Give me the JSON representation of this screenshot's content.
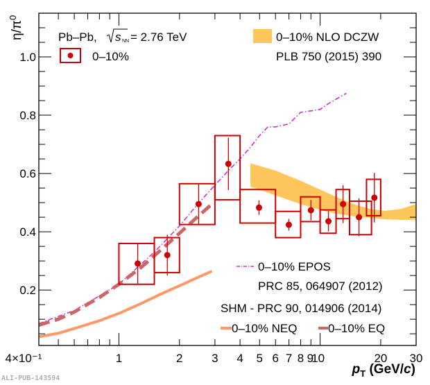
{
  "chart_data": {
    "type": "scatter",
    "title": "",
    "xlabel": "p_T (GeV/c)",
    "xlabel_parts": {
      "main": "p",
      "sub": "T",
      "unit_open": " (GeV/",
      "unit_italic": "c",
      "unit_close": ")"
    },
    "ylabel": "η/π⁰",
    "ylabel_parts": {
      "main": "η/π",
      "sup": "0"
    },
    "xscale": "log",
    "xlim": [
      0.4,
      30
    ],
    "ylim": [
      0.01,
      1.15
    ],
    "xticks": [
      {
        "value": 0.4,
        "label": "4×10⁻¹"
      },
      {
        "value": 1,
        "label": "1"
      },
      {
        "value": 2,
        "label": "2"
      },
      {
        "value": 3,
        "label": "3"
      },
      {
        "value": 4,
        "label": "4"
      },
      {
        "value": 5,
        "label": "5"
      },
      {
        "value": 6,
        "label": "6"
      },
      {
        "value": 7,
        "label": "7"
      },
      {
        "value": 8,
        "label": "8"
      },
      {
        "value": 9,
        "label": "9"
      },
      {
        "value": 10,
        "label": "10"
      },
      {
        "value": 20,
        "label": "20"
      },
      {
        "value": 30,
        "label": "30"
      }
    ],
    "yticks": [
      {
        "value": 0.2,
        "label": "0.2"
      },
      {
        "value": 0.4,
        "label": "0.4"
      },
      {
        "value": 0.6,
        "label": "0.6"
      },
      {
        "value": 0.8,
        "label": "0.8"
      },
      {
        "value": 1.0,
        "label": "1.0"
      }
    ],
    "grid": false,
    "series": [
      {
        "name": "0–10%",
        "kind": "data",
        "color": "#cc0000",
        "points": [
          {
            "x": 1.24,
            "y": 0.291,
            "stat": 0.07,
            "x_lo": 1.0,
            "x_hi": 1.5,
            "sys_lo": 0.22,
            "sys_hi": 0.36
          },
          {
            "x": 1.74,
            "y": 0.32,
            "stat": 0.07,
            "x_lo": 1.5,
            "x_hi": 2.0,
            "sys_lo": 0.26,
            "sys_hi": 0.38
          },
          {
            "x": 2.49,
            "y": 0.495,
            "stat": 0.07,
            "x_lo": 2.0,
            "x_hi": 3.0,
            "sys_lo": 0.425,
            "sys_hi": 0.565
          },
          {
            "x": 3.5,
            "y": 0.633,
            "stat": 0.09,
            "x_lo": 3.0,
            "x_hi": 4.0,
            "sys_lo": 0.51,
            "sys_hi": 0.73
          },
          {
            "x": 4.97,
            "y": 0.483,
            "stat": 0.025,
            "x_lo": 4.0,
            "x_hi": 6.0,
            "sys_lo": 0.43,
            "sys_hi": 0.545
          },
          {
            "x": 6.99,
            "y": 0.424,
            "stat": 0.02,
            "x_lo": 6.0,
            "x_hi": 8.0,
            "sys_lo": 0.38,
            "sys_hi": 0.47
          },
          {
            "x": 9.0,
            "y": 0.474,
            "stat": 0.035,
            "x_lo": 8.0,
            "x_hi": 10.0,
            "sys_lo": 0.435,
            "sys_hi": 0.52
          },
          {
            "x": 11.0,
            "y": 0.436,
            "stat": 0.035,
            "x_lo": 10.0,
            "x_hi": 12.0,
            "sys_lo": 0.395,
            "sys_hi": 0.475
          },
          {
            "x": 13.0,
            "y": 0.495,
            "stat": 0.065,
            "x_lo": 12.0,
            "x_hi": 14.0,
            "sys_lo": 0.445,
            "sys_hi": 0.545
          },
          {
            "x": 15.6,
            "y": 0.45,
            "stat": 0.065,
            "x_lo": 14.0,
            "x_hi": 18.0,
            "sys_lo": 0.39,
            "sys_hi": 0.505
          },
          {
            "x": 18.6,
            "y": 0.517,
            "stat": 0.085,
            "x_lo": 17.0,
            "x_hi": 20.0,
            "sys_lo": 0.455,
            "sys_hi": 0.58
          }
        ]
      },
      {
        "name": "0–10% NLO DCZW",
        "kind": "band",
        "color": "#ffc65c",
        "x": [
          4.5,
          6,
          8,
          10,
          12,
          15,
          18,
          21,
          25,
          30
        ],
        "y_lo": [
          0.555,
          0.525,
          0.495,
          0.475,
          0.462,
          0.452,
          0.447,
          0.443,
          0.441,
          0.44
        ],
        "y_hi": [
          0.635,
          0.61,
          0.575,
          0.545,
          0.52,
          0.493,
          0.477,
          0.472,
          0.478,
          0.495
        ]
      },
      {
        "name": "0–10% EPOS",
        "kind": "line",
        "style": "dash-dot",
        "color": "#cc33cc",
        "x": [
          0.4,
          0.6,
          0.8,
          1.0,
          1.5,
          2.0,
          2.5,
          3.0,
          3.5,
          4.0,
          4.5,
          5.0,
          5.5,
          6.0,
          7.0,
          8.0,
          9.0,
          10.0,
          11.0,
          12.0,
          13.5
        ],
        "y": [
          0.085,
          0.13,
          0.18,
          0.22,
          0.33,
          0.42,
          0.5,
          0.56,
          0.61,
          0.65,
          0.69,
          0.73,
          0.76,
          0.76,
          0.77,
          0.81,
          0.815,
          0.82,
          0.84,
          0.855,
          0.875
        ]
      },
      {
        "name": "0–10% NEQ",
        "kind": "line",
        "style": "solid",
        "color": "#ff9966",
        "x": [
          0.4,
          0.5,
          0.6,
          0.8,
          1.0,
          1.3,
          1.6,
          2.0,
          2.4,
          2.9
        ],
        "y": [
          0.04,
          0.052,
          0.068,
          0.095,
          0.12,
          0.155,
          0.185,
          0.215,
          0.24,
          0.265
        ]
      },
      {
        "name": "0–10% EQ",
        "kind": "line",
        "style": "dashed",
        "color": "#cc6666",
        "x": [
          0.4,
          0.5,
          0.6,
          0.8,
          1.0,
          1.3,
          1.6,
          2.0,
          2.4,
          2.9
        ],
        "y": [
          0.08,
          0.1,
          0.125,
          0.175,
          0.22,
          0.28,
          0.335,
          0.395,
          0.445,
          0.495
        ]
      }
    ],
    "legend": {
      "system": {
        "text_a": "Pb–Pb, ",
        "sqrt_s": "s",
        "sqrt_sub": "NN",
        "text_b": " = 2.76 TeV"
      },
      "data_entry": "0–10%",
      "nlo_entry": "0–10% NLO DCZW",
      "nlo_ref": "PLB 750 (2015) 390",
      "epos_entry": "0–10% EPOS",
      "epos_ref": "PRC 85, 064907 (2012)",
      "shm_ref": "SHM - PRC 90, 014906 (2014)",
      "neq_entry": "0–10% NEQ",
      "eq_entry": "0–10% EQ"
    },
    "watermark": "ALI-PUB-143594"
  }
}
